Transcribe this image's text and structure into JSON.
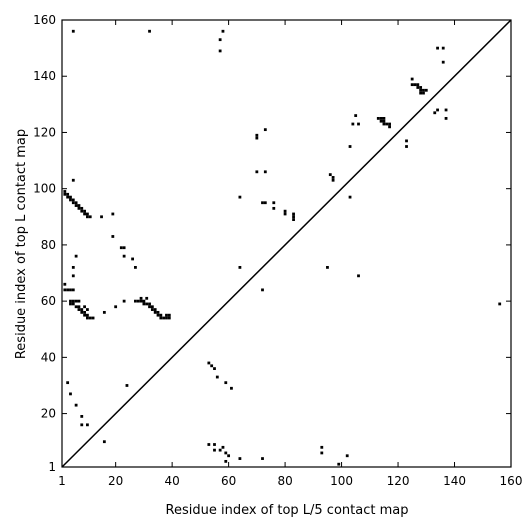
{
  "chart_data": {
    "type": "scatter",
    "title": "",
    "xlabel": "Residue index of top L/5 contact map",
    "ylabel": "Residue index of top L contact map",
    "xlim": [
      1,
      160
    ],
    "ylim": [
      1,
      160
    ],
    "xticks": [
      1,
      20,
      40,
      60,
      80,
      100,
      120,
      140,
      160
    ],
    "yticks": [
      1,
      20,
      40,
      60,
      80,
      100,
      120,
      140,
      160
    ],
    "diagonal": true,
    "legend": "none",
    "grid": false,
    "marker_color": "#000000",
    "series": [
      {
        "values": [
          [
            2,
            99
          ],
          [
            2,
            98
          ],
          [
            3,
            98
          ],
          [
            3,
            97
          ],
          [
            4,
            97
          ],
          [
            4,
            96
          ],
          [
            5,
            96
          ],
          [
            5,
            95
          ],
          [
            6,
            95
          ],
          [
            6,
            94
          ],
          [
            7,
            94
          ],
          [
            7,
            93
          ],
          [
            8,
            93
          ],
          [
            8,
            92
          ],
          [
            9,
            92
          ],
          [
            9,
            91
          ],
          [
            10,
            91
          ],
          [
            10,
            90
          ],
          [
            11,
            90
          ],
          [
            5,
            103
          ],
          [
            15,
            90
          ],
          [
            19,
            91
          ],
          [
            19,
            83
          ],
          [
            22,
            79
          ],
          [
            23,
            79
          ],
          [
            23,
            76
          ],
          [
            26,
            75
          ],
          [
            27,
            72
          ],
          [
            20,
            58
          ],
          [
            23,
            60
          ],
          [
            16,
            56
          ],
          [
            2,
            66
          ],
          [
            2,
            64
          ],
          [
            3,
            64
          ],
          [
            4,
            64
          ],
          [
            5,
            64
          ],
          [
            5,
            72
          ],
          [
            5,
            69
          ],
          [
            6,
            76
          ],
          [
            4,
            60
          ],
          [
            4,
            59
          ],
          [
            5,
            60
          ],
          [
            5,
            59
          ],
          [
            6,
            60
          ],
          [
            7,
            60
          ],
          [
            6,
            58
          ],
          [
            7,
            58
          ],
          [
            7,
            57
          ],
          [
            8,
            57
          ],
          [
            8,
            56
          ],
          [
            9,
            56
          ],
          [
            9,
            55
          ],
          [
            10,
            55
          ],
          [
            10,
            54
          ],
          [
            11,
            54
          ],
          [
            12,
            54
          ],
          [
            9,
            58
          ],
          [
            10,
            57
          ],
          [
            27,
            60
          ],
          [
            28,
            60
          ],
          [
            29,
            60
          ],
          [
            29,
            61
          ],
          [
            30,
            60
          ],
          [
            30,
            59
          ],
          [
            31,
            59
          ],
          [
            31,
            61
          ],
          [
            32,
            59
          ],
          [
            32,
            58
          ],
          [
            33,
            58
          ],
          [
            33,
            57
          ],
          [
            34,
            57
          ],
          [
            34,
            56
          ],
          [
            35,
            56
          ],
          [
            35,
            55
          ],
          [
            36,
            55
          ],
          [
            36,
            54
          ],
          [
            37,
            54
          ],
          [
            38,
            54
          ],
          [
            38,
            55
          ],
          [
            39,
            55
          ],
          [
            39,
            54
          ],
          [
            3,
            31
          ],
          [
            4,
            27
          ],
          [
            6,
            23
          ],
          [
            8,
            19
          ],
          [
            8,
            16
          ],
          [
            10,
            16
          ],
          [
            16,
            10
          ],
          [
            24,
            30
          ],
          [
            5,
            156
          ],
          [
            32,
            156
          ],
          [
            58,
            156
          ],
          [
            57,
            153
          ],
          [
            57,
            149
          ],
          [
            53,
            38
          ],
          [
            54,
            37
          ],
          [
            55,
            36
          ],
          [
            56,
            33
          ],
          [
            59,
            31
          ],
          [
            61,
            29
          ],
          [
            64,
            97
          ],
          [
            64,
            72
          ],
          [
            72,
            64
          ],
          [
            53,
            9
          ],
          [
            55,
            9
          ],
          [
            55,
            7
          ],
          [
            57,
            7
          ],
          [
            58,
            8
          ],
          [
            59,
            6
          ],
          [
            60,
            5
          ],
          [
            59,
            3
          ],
          [
            64,
            4
          ],
          [
            72,
            4
          ],
          [
            93,
            8
          ],
          [
            93,
            6
          ],
          [
            99,
            2
          ],
          [
            102,
            5
          ],
          [
            70,
            106
          ],
          [
            73,
            106
          ],
          [
            70,
            119
          ],
          [
            70,
            118
          ],
          [
            73,
            121
          ],
          [
            72,
            95
          ],
          [
            73,
            95
          ],
          [
            76,
            95
          ],
          [
            76,
            93
          ],
          [
            80,
            92
          ],
          [
            80,
            91
          ],
          [
            83,
            91
          ],
          [
            83,
            90
          ],
          [
            83,
            89
          ],
          [
            95,
            72
          ],
          [
            96,
            105
          ],
          [
            97,
            104
          ],
          [
            97,
            103
          ],
          [
            103,
            115
          ],
          [
            103,
            97
          ],
          [
            104,
            123
          ],
          [
            105,
            126
          ],
          [
            106,
            123
          ],
          [
            106,
            69
          ],
          [
            113,
            125
          ],
          [
            114,
            125
          ],
          [
            114,
            124
          ],
          [
            115,
            125
          ],
          [
            115,
            124
          ],
          [
            115,
            123
          ],
          [
            116,
            123
          ],
          [
            117,
            123
          ],
          [
            117,
            122
          ],
          [
            123,
            117
          ],
          [
            123,
            115
          ],
          [
            125,
            139
          ],
          [
            125,
            137
          ],
          [
            126,
            137
          ],
          [
            127,
            137
          ],
          [
            127,
            136
          ],
          [
            128,
            136
          ],
          [
            128,
            135
          ],
          [
            128,
            134
          ],
          [
            129,
            135
          ],
          [
            129,
            134
          ],
          [
            130,
            135
          ],
          [
            133,
            127
          ],
          [
            134,
            150
          ],
          [
            134,
            128
          ],
          [
            136,
            150
          ],
          [
            136,
            145
          ],
          [
            137,
            128
          ],
          [
            137,
            125
          ],
          [
            156,
            59
          ]
        ]
      }
    ]
  }
}
